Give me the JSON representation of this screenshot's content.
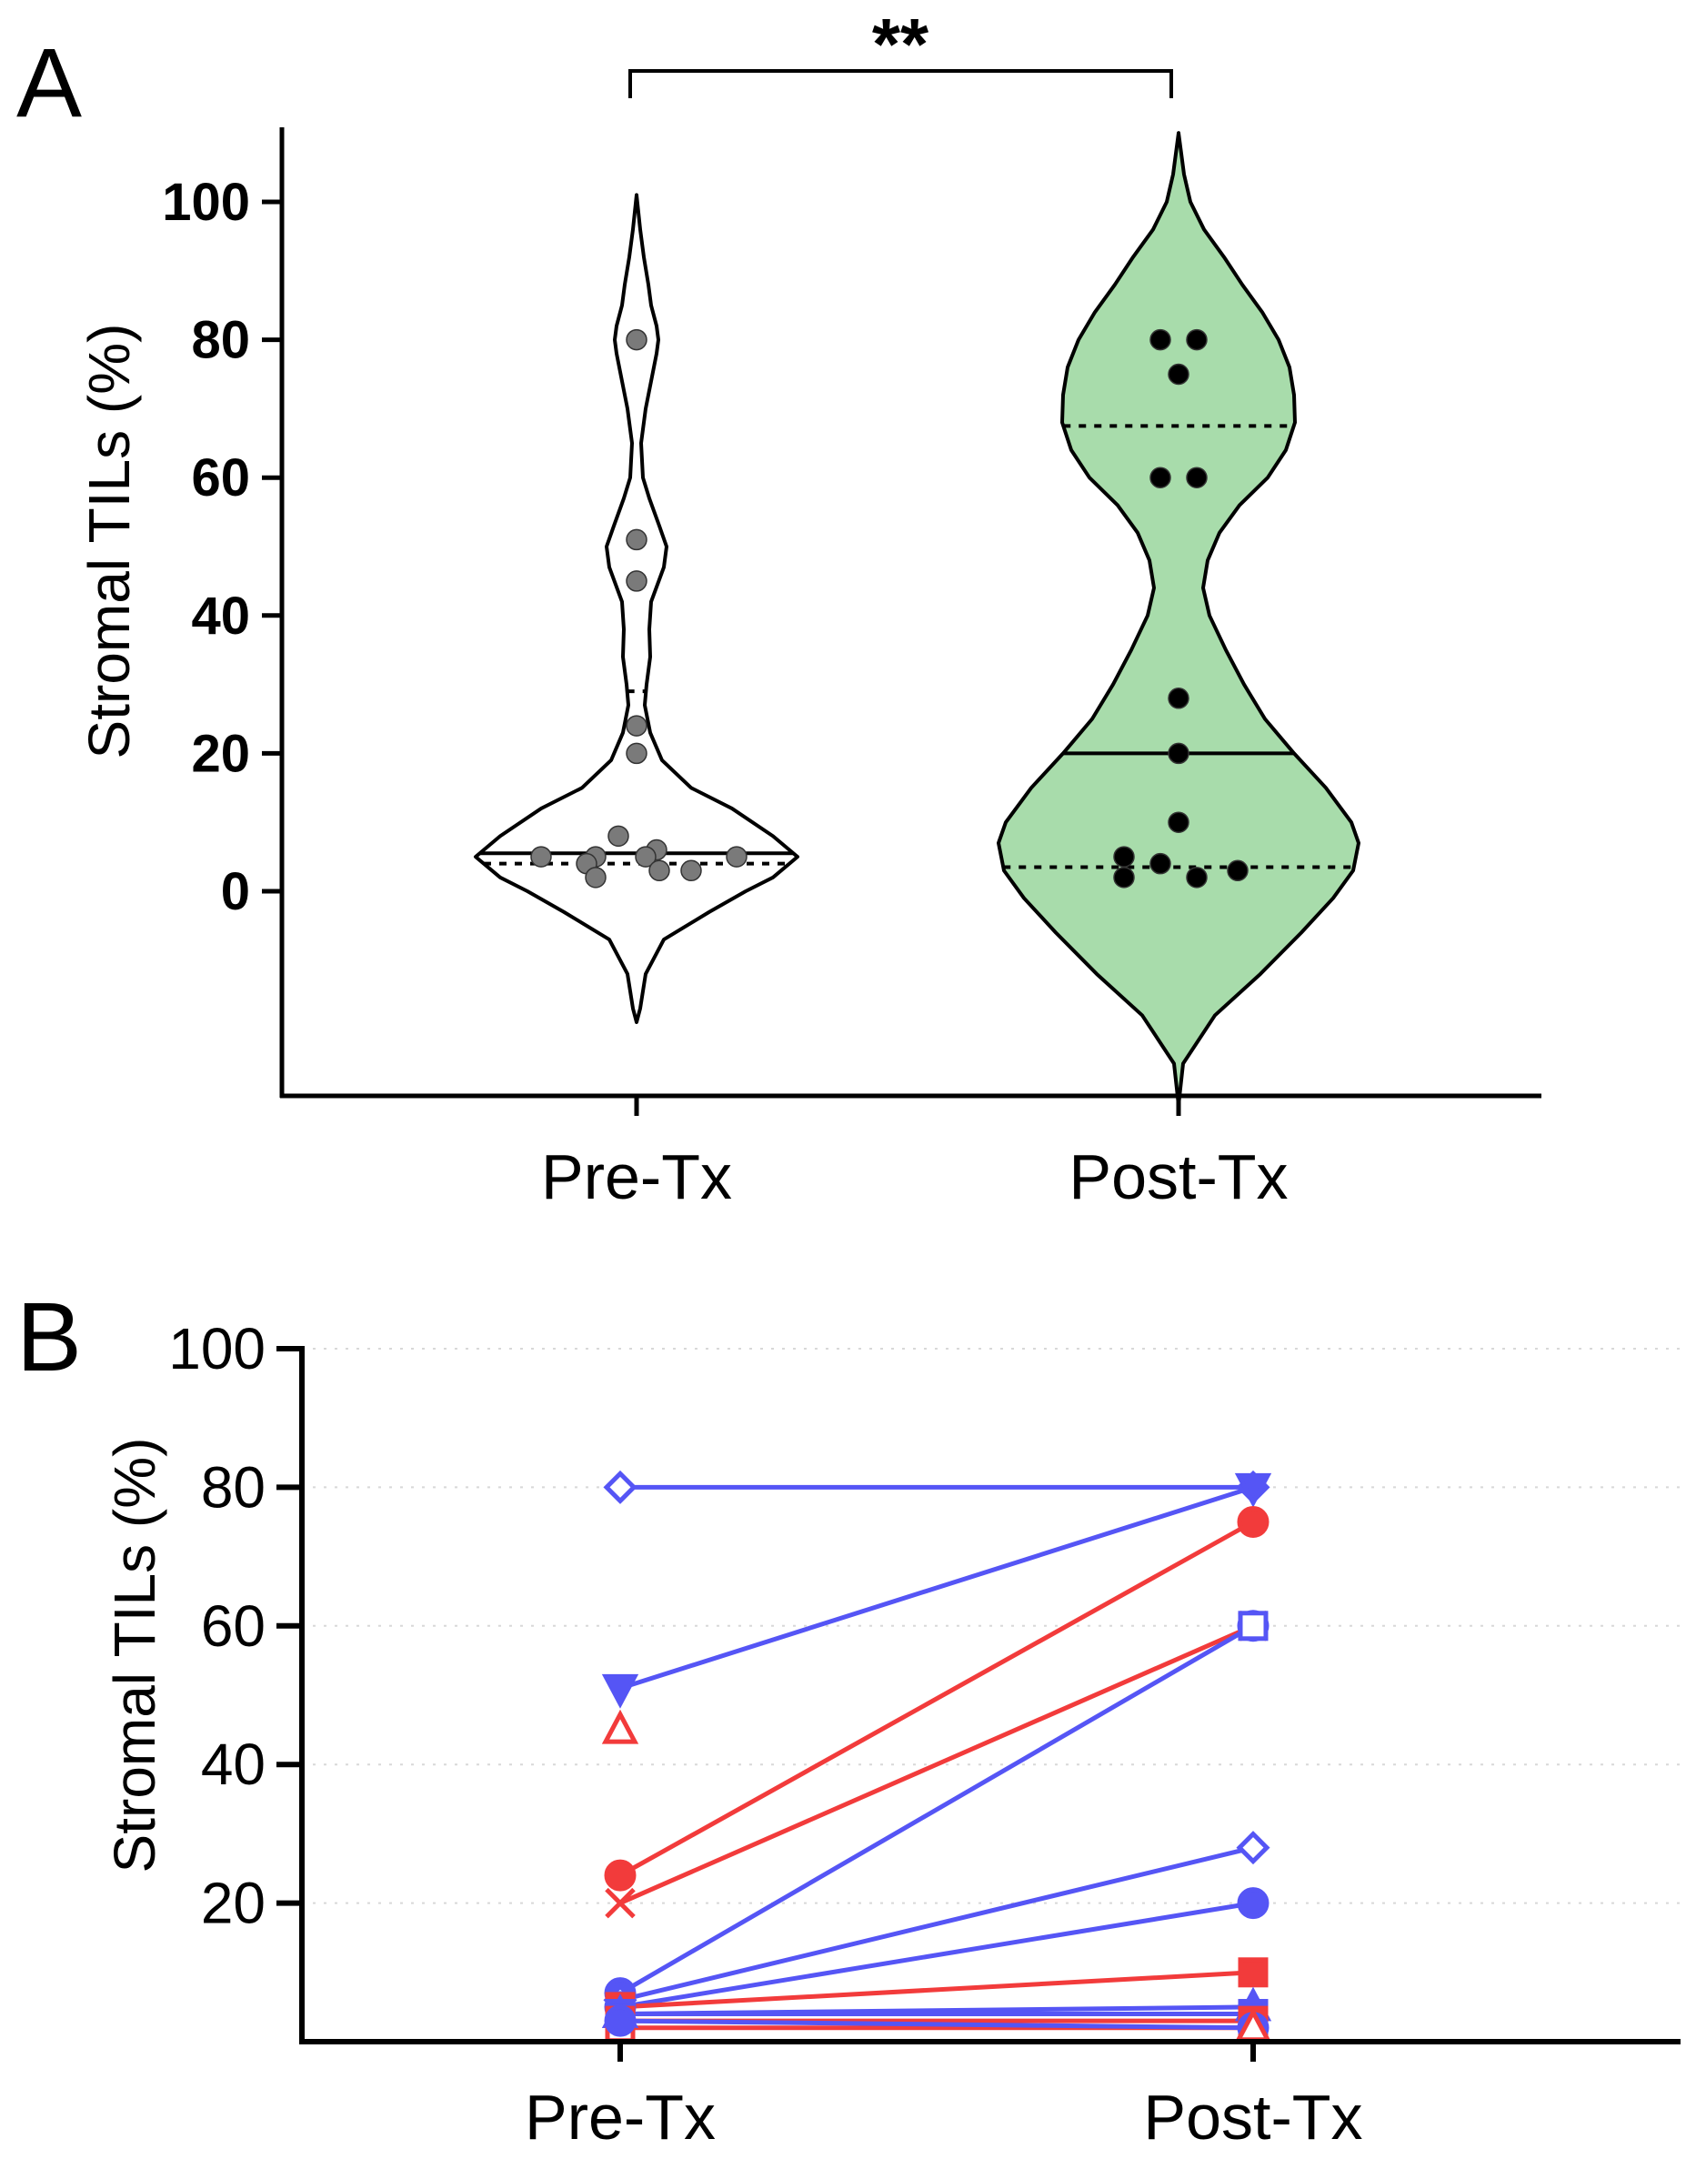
{
  "chart_data": [
    {
      "panel": "A",
      "type": "violin",
      "ylabel": "Stromal TILs (%)",
      "ylim": [
        -30,
        110
      ],
      "yticks": [
        "0",
        "20",
        "40",
        "60",
        "80",
        "100"
      ],
      "categories": [
        "Pre-Tx",
        "Post-Tx"
      ],
      "significance": "**",
      "groups": [
        {
          "name": "Pre-Tx",
          "fill": "#ffffff",
          "point_color": "#7a7a7a",
          "median": 5.5,
          "quartiles": [
            4,
            29
          ],
          "points": [
            80,
            51,
            45,
            24,
            20,
            8,
            6,
            5,
            5,
            5,
            5,
            4,
            3,
            3,
            2
          ]
        },
        {
          "name": "Post-Tx",
          "fill": "#a8dcab",
          "point_color": "#000000",
          "median": 20,
          "quartiles": [
            3.5,
            67.5
          ],
          "points": [
            80,
            80,
            75,
            60,
            60,
            28,
            20,
            10,
            5,
            4,
            3,
            2,
            2
          ]
        }
      ]
    },
    {
      "panel": "B",
      "type": "paired-line",
      "ylabel": "Stromal TILs (%)",
      "ylim": [
        0,
        100
      ],
      "yticks": [
        "20",
        "40",
        "60",
        "80",
        "100"
      ],
      "categories": [
        "Pre-Tx",
        "Post-Tx"
      ],
      "colors": {
        "blue": "#5555f5",
        "red": "#f23b3b"
      },
      "pairs": [
        {
          "marker": "diamond-open",
          "color": "blue",
          "pre": 80,
          "post": 80
        },
        {
          "marker": "triangle-down",
          "color": "blue",
          "pre": 51,
          "post": 80
        },
        {
          "marker": "circle",
          "color": "red",
          "pre": 24,
          "post": 75
        },
        {
          "marker": "cross",
          "color": "red",
          "pre": 20,
          "post": 60
        },
        {
          "marker": "circle",
          "color": "blue",
          "pre": 7,
          "post": 60
        },
        {
          "marker": "triangle-up-open",
          "color": "red",
          "pre": 45
        },
        {
          "marker": "diamond-open",
          "color": "blue",
          "pre": 6,
          "post": 28
        },
        {
          "marker": "circle",
          "color": "blue",
          "pre": 5,
          "post": 20
        },
        {
          "marker": "square",
          "color": "red",
          "pre": 5,
          "post": 10
        },
        {
          "marker": "triangle-up",
          "color": "blue",
          "pre": 4,
          "post": 5
        },
        {
          "marker": "square",
          "color": "blue",
          "pre": 4,
          "post": 4
        },
        {
          "marker": "square",
          "color": "red",
          "pre": 3,
          "post": 3
        },
        {
          "marker": "square-open",
          "color": "red",
          "pre": 2,
          "post": 2
        },
        {
          "marker": "circle",
          "color": "blue",
          "pre": 3,
          "post": 2
        }
      ],
      "post_only_markers": [
        {
          "marker": "square-open",
          "color": "blue",
          "post": 60
        },
        {
          "marker": "triangle-up-open",
          "color": "red",
          "post": 2
        }
      ]
    }
  ]
}
